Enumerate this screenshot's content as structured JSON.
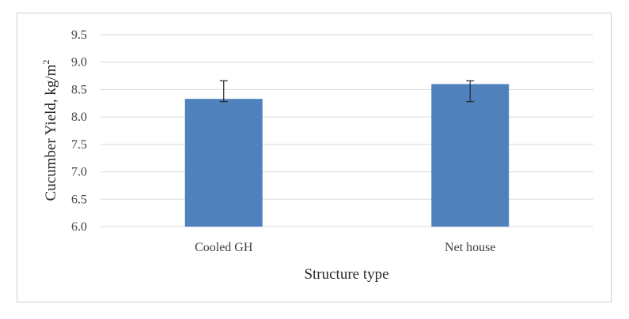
{
  "chart_data": {
    "type": "bar",
    "title": "",
    "categories": [
      "Cooled GH",
      "Net house"
    ],
    "series": [
      {
        "values": [
          8.33,
          8.6
        ],
        "error_low": [
          8.28,
          8.28
        ],
        "error_high": [
          8.66,
          8.66
        ],
        "color": "#4f81bd"
      }
    ],
    "xlabel": "Structure type",
    "ylabel_main": "Cucumber Yield, kg/m",
    "ylabel_sup": "2",
    "ylim": [
      6.0,
      9.5
    ],
    "yticks": [
      "6.0",
      "6.5",
      "7.0",
      "7.5",
      "8.0",
      "8.5",
      "9.0",
      "9.5"
    ],
    "grid": true,
    "legend": "none"
  }
}
